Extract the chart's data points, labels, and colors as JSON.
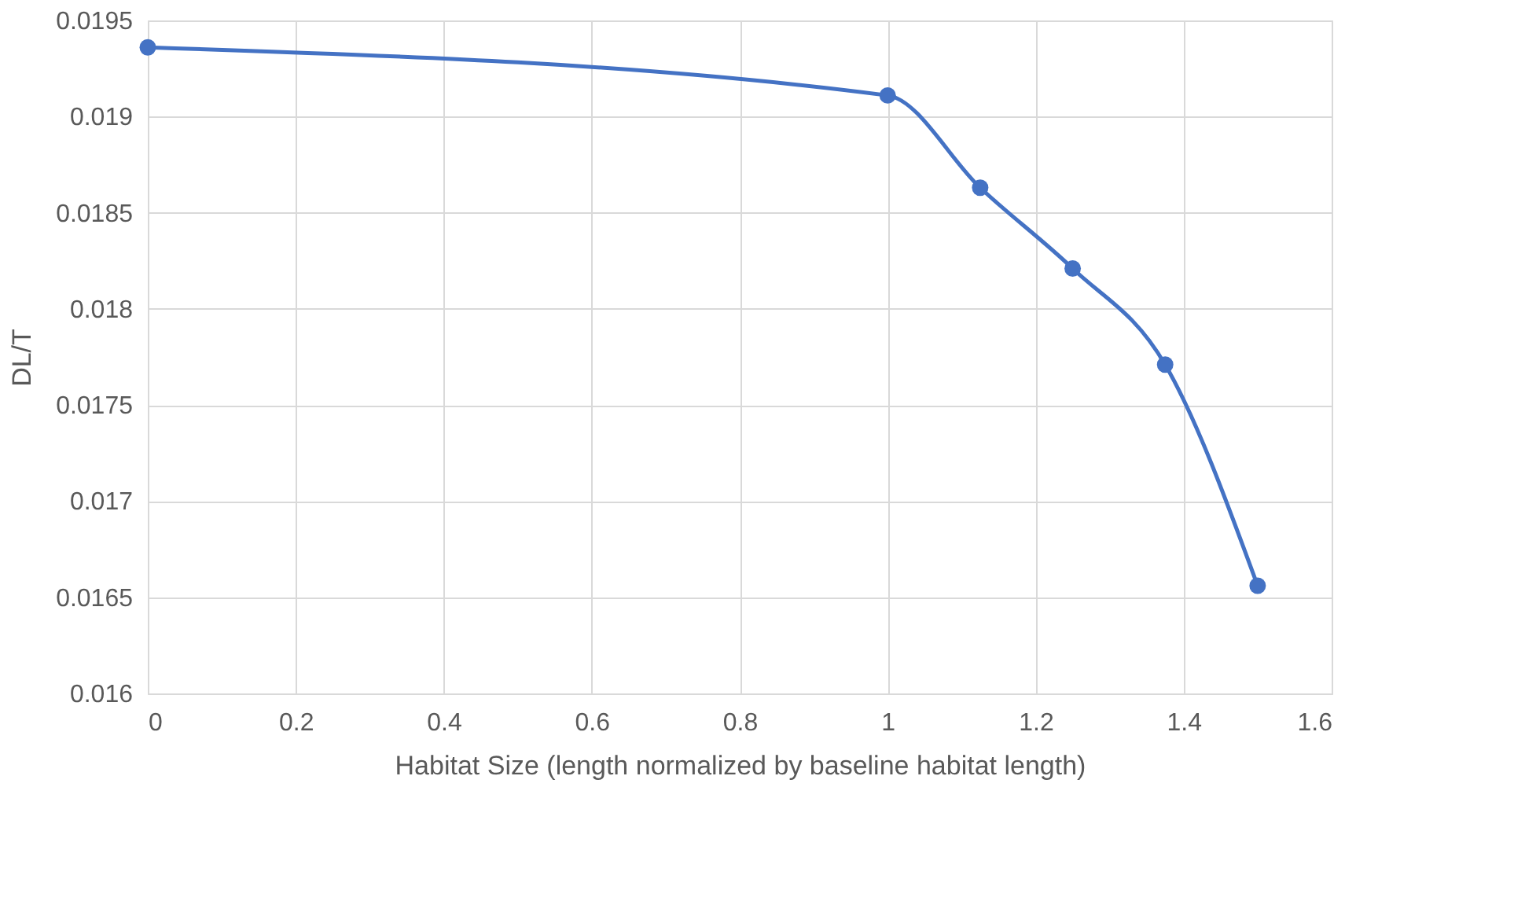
{
  "chart_data": {
    "type": "line",
    "xlabel": "Habitat Size (length normalized by baseline habitat length)",
    "ylabel": "DL/T",
    "x": [
      0,
      1,
      1.125,
      1.25,
      1.375,
      1.5
    ],
    "series": [
      {
        "color": "#4472c4",
        "values": [
          0.01936,
          0.01911,
          0.01863,
          0.01821,
          0.01771,
          0.01656
        ]
      }
    ],
    "xlim": [
      0,
      1.6
    ],
    "xticks": [
      0,
      0.2,
      0.4,
      0.6,
      0.8,
      1,
      1.2,
      1.4,
      1.6
    ],
    "ylim": [
      0.016,
      0.0195
    ],
    "yticks": [
      0.016,
      0.0165,
      0.017,
      0.0175,
      0.018,
      0.0185,
      0.019,
      0.0195
    ],
    "grid": true,
    "marker": "circle",
    "line_style": "solid"
  }
}
